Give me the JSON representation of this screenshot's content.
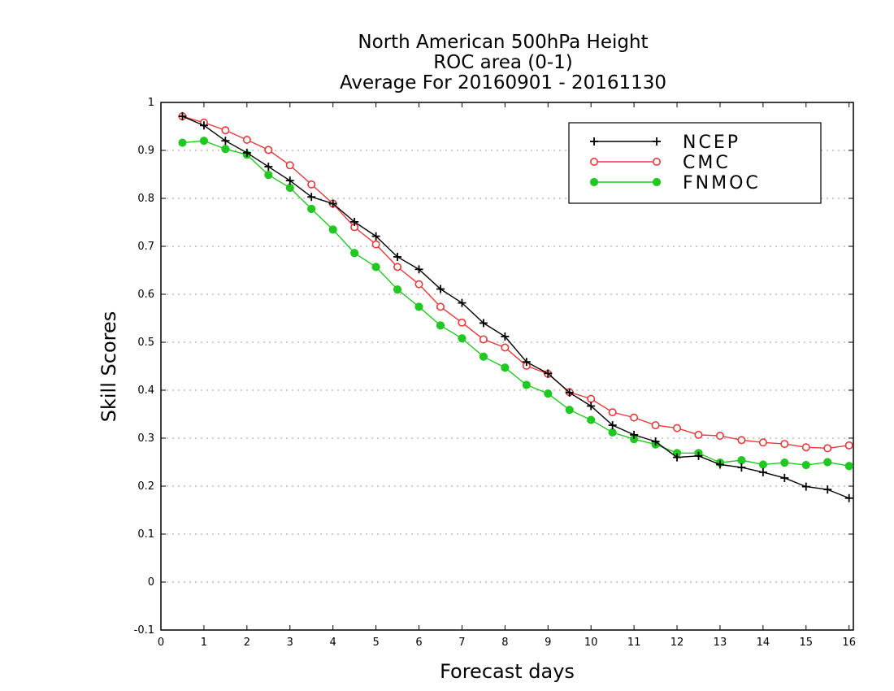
{
  "chart_data": {
    "type": "line",
    "title": [
      "North American 500hPa Height",
      "ROC area (0-1)",
      "Average For 20160901 - 20161130"
    ],
    "xlabel": "Forecast days",
    "ylabel": "Skill Scores",
    "xlim": [
      0,
      16.1
    ],
    "ylim": [
      -0.1,
      1
    ],
    "xticks": [
      0,
      1,
      2,
      3,
      4,
      5,
      6,
      7,
      8,
      9,
      10,
      11,
      12,
      13,
      14,
      15,
      16
    ],
    "xtick_labels": [
      "0",
      "1",
      "2",
      "3",
      "4",
      "5",
      "6",
      "7",
      "8",
      "9",
      "10",
      "11",
      "12",
      "13",
      "14",
      "15",
      "16"
    ],
    "yticks": [
      -0.1,
      0,
      0.1,
      0.2,
      0.3,
      0.4,
      0.5,
      0.6,
      0.7,
      0.8,
      0.9,
      1
    ],
    "ytick_labels": [
      "-0.1",
      "0",
      "0.1",
      "0.2",
      "0.3",
      "0.4",
      "0.5",
      "0.6",
      "0.7",
      "0.8",
      "0.9",
      "1"
    ],
    "grid": "horizontal-dotted",
    "legend_position": "top-right",
    "x": [
      0.5,
      1,
      1.5,
      2,
      2.5,
      3,
      3.5,
      4,
      4.5,
      5,
      5.5,
      6,
      6.5,
      7,
      7.5,
      8,
      8.5,
      9,
      9.5,
      10,
      10.5,
      11,
      11.5,
      12,
      12.5,
      13,
      13.5,
      14,
      14.5,
      15,
      15.5,
      16
    ],
    "series": [
      {
        "name": "NCEP",
        "color": "#000000",
        "marker": "plus",
        "values": [
          0.971,
          0.952,
          0.92,
          0.895,
          0.866,
          0.837,
          0.803,
          0.789,
          0.751,
          0.721,
          0.678,
          0.652,
          0.611,
          0.582,
          0.54,
          0.512,
          0.459,
          0.435,
          0.395,
          0.367,
          0.327,
          0.307,
          0.293,
          0.26,
          0.263,
          0.245,
          0.239,
          0.229,
          0.217,
          0.199,
          0.193,
          0.175
        ]
      },
      {
        "name": "CMC",
        "color": "#e8383a",
        "marker": "open-circle",
        "values": [
          0.971,
          0.958,
          0.942,
          0.922,
          0.901,
          0.869,
          0.829,
          0.789,
          0.74,
          0.704,
          0.657,
          0.621,
          0.574,
          0.541,
          0.506,
          0.489,
          0.451,
          0.434,
          0.396,
          0.382,
          0.354,
          0.343,
          0.327,
          0.321,
          0.307,
          0.305,
          0.296,
          0.291,
          0.288,
          0.281,
          0.279,
          0.285
        ]
      },
      {
        "name": "FNMOC",
        "color": "#22c822",
        "marker": "filled-circle",
        "values": [
          0.916,
          0.92,
          0.903,
          0.891,
          0.849,
          0.822,
          0.778,
          0.735,
          0.686,
          0.657,
          0.61,
          0.574,
          0.535,
          0.508,
          0.47,
          0.447,
          0.411,
          0.393,
          0.359,
          0.338,
          0.312,
          0.298,
          0.287,
          0.269,
          0.269,
          0.249,
          0.254,
          0.245,
          0.249,
          0.244,
          0.25,
          0.242
        ]
      }
    ]
  }
}
